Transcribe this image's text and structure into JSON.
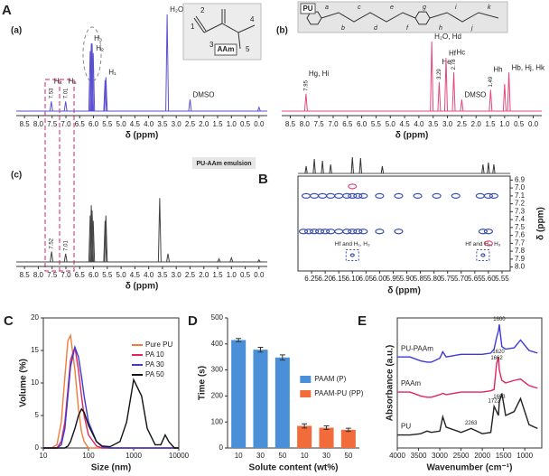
{
  "chart_data": [
    {
      "type": "spectrum",
      "panel": "A",
      "subtitle": "(a)",
      "xlabel": "δ (ppm)",
      "color": "#5a4fcf",
      "xlim": [
        8.8,
        -0.3
      ],
      "xticks": [
        8.5,
        {
          "value": 8,
          "label": "8.0"
        },
        7.5,
        {
          "value": 7,
          "label": "7.0"
        },
        6.5,
        {
          "value": 6,
          "label": "6.0"
        },
        5.5,
        {
          "value": 5,
          "label": "5.0"
        },
        4.5,
        {
          "value": 4,
          "label": "4.0"
        },
        3.5,
        {
          "value": 3,
          "label": "3.0"
        },
        2.5,
        {
          "value": 2,
          "label": "2.0"
        },
        1.5,
        {
          "value": 1,
          "label": "1.0"
        },
        0.5,
        {
          "value": 0,
          "label": "0.0"
        }
      ],
      "x": [
        7.53,
        7.01,
        6.12,
        6.08,
        6.05,
        6.01,
        5.58,
        5.55,
        3.33,
        2.5,
        0
      ],
      "values": [
        0.1,
        0.1,
        0.62,
        0.7,
        0.7,
        0.6,
        0.32,
        0.35,
        1.0,
        0.12,
        0.04
      ],
      "peak_labels": [
        "H₄",
        "H₅",
        null,
        "H₃",
        null,
        "H₂",
        null,
        "H₁",
        "H₂O",
        "DMSO",
        null
      ],
      "shift_labels": [
        "7.53",
        "7.01",
        null,
        null,
        null,
        null,
        null,
        null,
        null,
        null,
        null
      ],
      "structure": {
        "label": "AAm",
        "atom_labels": [
          "1",
          "2",
          "3",
          "4",
          "5"
        ]
      }
    },
    {
      "type": "spectrum",
      "subtitle": "(b)",
      "xlabel": "δ (ppm)",
      "color": "#e4487c",
      "xlim": [
        8.8,
        -0.3
      ],
      "xticks": [
        8.5,
        {
          "value": 8,
          "label": "8.0"
        },
        7.5,
        {
          "value": 7,
          "label": "7.0"
        },
        6.5,
        {
          "value": 6,
          "label": "6.0"
        },
        5.5,
        {
          "value": 5,
          "label": "5.0"
        },
        4.5,
        {
          "value": 4,
          "label": "4.0"
        },
        3.5,
        {
          "value": 3,
          "label": "3.0"
        },
        2.5,
        {
          "value": 2,
          "label": "2.0"
        },
        1.5,
        {
          "value": 1,
          "label": "1.0"
        },
        0.5,
        {
          "value": 0,
          "label": "0.0"
        }
      ],
      "x": [
        7.95,
        3.55,
        3.29,
        3.05,
        2.78,
        2.5,
        1.49,
        1.0,
        0.85
      ],
      "values": [
        0.18,
        0.72,
        0.3,
        0.55,
        0.4,
        0.12,
        0.22,
        0.28,
        0.4
      ],
      "peak_labels": [
        "Hg, Hi",
        "H₂O, Hd",
        "He",
        "Hf",
        "Hc",
        "DMSO",
        "Hh",
        null,
        "Hb, Hj, Hk"
      ],
      "shift_labels": [
        "7.95",
        null,
        "3.29",
        null,
        "2.78",
        null,
        "1.49",
        null,
        null
      ],
      "structure": {
        "label": "PU",
        "atom_labels": [
          "a",
          "b",
          "c",
          "d",
          "e",
          "f",
          "g",
          "h",
          "i",
          "j",
          "k"
        ]
      }
    },
    {
      "type": "spectrum",
      "subtitle": "(c)",
      "xlabel": "δ (ppm)",
      "color": "#444444",
      "annotation": "PU-AAm emulsion",
      "xlim": [
        8.8,
        -0.3
      ],
      "xticks": [
        8.5,
        {
          "value": 8,
          "label": "8.0"
        },
        7.5,
        {
          "value": 7,
          "label": "7.0"
        },
        6.5,
        {
          "value": 6,
          "label": "6.0"
        },
        5.5,
        {
          "value": 5,
          "label": "5.0"
        },
        4.5,
        {
          "value": 4,
          "label": "4.0"
        },
        3.5,
        {
          "value": 3,
          "label": "3.0"
        },
        2.5,
        {
          "value": 2,
          "label": "2.0"
        },
        1.5,
        {
          "value": 1,
          "label": "1.0"
        },
        0.5,
        {
          "value": 0,
          "label": "0.0"
        }
      ],
      "x": [
        7.52,
        7.01,
        6.12,
        6.08,
        6.05,
        6.01,
        5.58,
        5.55,
        3.6,
        3.3,
        1.45,
        1.0,
        0
      ],
      "values": [
        0.1,
        0.08,
        0.45,
        0.55,
        0.5,
        0.4,
        0.4,
        0.45,
        0.62,
        0.08,
        0.03,
        0.04,
        0.02
      ],
      "shift_labels": [
        "7.52",
        "7.01",
        null,
        null,
        null,
        null,
        null,
        null,
        null,
        null,
        null,
        null,
        null
      ]
    },
    {
      "type": "contour",
      "panel": "B",
      "xlabel": "δ (ppm)",
      "ylabel": "δ (ppm)",
      "xlim": [
        6.3,
        5.52
      ],
      "ylim": [
        6.85,
        8.05
      ],
      "xticks": [
        6.25,
        {
          "value": 6.2,
          "label": "6.20"
        },
        6.15,
        {
          "value": 6.1,
          "label": "6.10"
        },
        6.05,
        {
          "value": 6,
          "label": "6.00"
        },
        5.95,
        {
          "value": 5.9,
          "label": "5.90"
        },
        5.85,
        {
          "value": 5.8,
          "label": "5.80"
        },
        5.75,
        {
          "value": 5.7,
          "label": "5.70"
        },
        5.65,
        {
          "value": 5.6,
          "label": "5.60"
        },
        5.55
      ],
      "yticks": [
        6.9,
        {
          "value": 7,
          "label": "7.0"
        },
        7.1,
        7.2,
        7.3,
        7.4,
        7.5,
        7.6,
        7.7,
        7.8,
        7.9,
        {
          "value": 8,
          "label": "8.0"
        }
      ],
      "projection": {
        "x": [
          6.27,
          6.24,
          6.21,
          6.18,
          6.1,
          6.07,
          5.99,
          5.62,
          5.6,
          5.58
        ],
        "values": [
          0.4,
          0.8,
          0.7,
          0.5,
          0.9,
          0.85,
          0.4,
          0.5,
          0.6,
          0.5
        ]
      },
      "series": [
        {
          "color": "#3b4fb0",
          "x": [
            6.27,
            6.24,
            6.21,
            6.18,
            6.15,
            6.12,
            6.1,
            6.08,
            6.06,
            6.0,
            5.93,
            5.86,
            5.79,
            5.72,
            5.63,
            5.6,
            5.58,
            6.28,
            6.26,
            6.24,
            6.22,
            6.2,
            6.18,
            6.15,
            6.12,
            6.1,
            6.08,
            6.06,
            6.0,
            5.93,
            5.62,
            5.6
          ],
          "values": [
            7.1,
            7.1,
            7.1,
            7.1,
            7.1,
            7.1,
            7.1,
            7.1,
            7.1,
            7.1,
            7.1,
            7.1,
            7.1,
            7.1,
            7.1,
            7.1,
            7.1,
            7.55,
            7.55,
            7.55,
            7.55,
            7.55,
            7.55,
            7.55,
            7.55,
            7.55,
            7.55,
            7.55,
            7.55,
            7.55,
            7.55,
            7.55
          ]
        },
        {
          "color": "#e4487c",
          "x": [
            6.1,
            5.6
          ],
          "values": [
            6.98,
            7.7
          ]
        },
        {
          "color": "#3b4fb0",
          "highlight": true,
          "x": [
            6.1,
            5.62
          ],
          "values": [
            7.85,
            7.85
          ],
          "point_labels": [
            "Hf and H₁, H₃",
            "Hf and H₂, H₃"
          ]
        }
      ]
    },
    {
      "type": "line",
      "panel": "C",
      "xlabel": "Size (nm)",
      "ylabel": "Volume (%)",
      "log_x": true,
      "legend": "upper right",
      "xlim": [
        10,
        10000
      ],
      "xticks": [
        10,
        100,
        1000,
        10000
      ],
      "ylim": [
        0,
        20
      ],
      "yticks": [
        0,
        5,
        10,
        15,
        20
      ],
      "x": [
        10,
        15,
        20,
        25,
        30,
        35,
        40,
        50,
        60,
        70,
        80,
        100,
        150,
        200,
        300,
        500,
        700,
        1000,
        1500,
        2000,
        3000,
        4000,
        5000,
        6000,
        8000,
        10000
      ],
      "series": [
        {
          "name": "Pure PU",
          "color": "#f07c3c",
          "values": [
            0,
            0,
            0.5,
            4,
            11,
            16.5,
            17.3,
            12,
            6,
            2.5,
            1,
            0,
            0,
            0,
            0,
            0,
            0,
            0,
            0,
            0,
            0,
            0,
            0,
            0,
            0,
            0
          ]
        },
        {
          "name": "PA 10",
          "color": "#e0245e",
          "values": [
            0,
            0,
            0,
            1,
            4,
            9,
            13.5,
            15.5,
            12,
            8,
            5,
            2,
            0.3,
            0,
            0,
            0,
            0,
            0,
            0,
            0,
            0,
            0,
            0,
            0,
            0,
            0
          ]
        },
        {
          "name": "PA 30",
          "color": "#3a3ad6",
          "values": [
            0,
            0,
            0,
            0.5,
            3,
            8,
            12.5,
            15.5,
            14,
            11,
            8,
            4,
            1,
            0.2,
            0,
            0,
            0,
            0,
            0,
            0,
            0,
            0,
            0,
            0,
            0,
            0
          ]
        },
        {
          "name": "PA 50",
          "color": "#111111",
          "values": [
            0,
            0,
            0,
            0,
            0,
            0.3,
            1,
            3,
            5,
            6,
            5.5,
            3.5,
            1,
            0.3,
            0.2,
            1,
            4,
            10.5,
            8,
            3,
            0.5,
            0.5,
            2,
            1,
            0,
            0
          ]
        }
      ]
    },
    {
      "type": "bar",
      "panel": "D",
      "xlabel": "Solute content (wt%)",
      "ylabel": "Time (s)",
      "legend": "right",
      "categories": [
        "10",
        "30",
        "50",
        "10",
        "30",
        "50"
      ],
      "ylim": [
        0,
        500
      ],
      "yticks": [
        0,
        100,
        200,
        300,
        400,
        500
      ],
      "series": [
        {
          "name": "PAAM (P)",
          "color": "#4a90d9",
          "values": [
            415,
            378,
            348,
            null,
            null,
            null
          ],
          "errors": [
            6,
            9,
            10,
            null,
            null,
            null
          ]
        },
        {
          "name": "PAAM-PU (PP)",
          "color": "#f26b3a",
          "values": [
            null,
            null,
            null,
            85,
            78,
            70
          ],
          "errors": [
            null,
            null,
            null,
            8,
            7,
            6
          ]
        }
      ]
    },
    {
      "type": "line",
      "panel": "E",
      "xlabel": "Wavenumber (cm⁻¹)",
      "ylabel": "Absorbance (a.u.)",
      "legend": "inline",
      "xlim": [
        4000,
        600
      ],
      "xticks": [
        4000,
        3500,
        3000,
        2500,
        2000,
        1500,
        1000
      ],
      "ylim": [
        0,
        10
      ],
      "x": [
        4000,
        3700,
        3450,
        3300,
        3200,
        3000,
        2930,
        2850,
        2500,
        2263,
        2000,
        1800,
        1722,
        1662,
        1620,
        1600,
        1540,
        1450,
        1250,
        1100,
        900,
        700
      ],
      "series": [
        {
          "name": "PU-PAAm",
          "color": "#3a3ad6",
          "values": [
            7,
            7,
            6.7,
            6.6,
            6.6,
            6.9,
            7.4,
            7,
            7.2,
            7.2,
            7.2,
            7.3,
            7.6,
            8.5,
            9,
            9.5,
            7.8,
            7.6,
            7.7,
            8.3,
            7.5,
            7.3
          ],
          "point_labels": [
            null,
            null,
            null,
            null,
            null,
            null,
            null,
            null,
            null,
            null,
            null,
            null,
            null,
            null,
            null,
            "1600",
            null,
            null,
            null,
            null,
            null,
            null
          ]
        },
        {
          "name": "PAAm",
          "color": "#e0245e",
          "values": [
            4.3,
            4.3,
            4,
            3.9,
            3.9,
            4.1,
            4.2,
            4.1,
            4.3,
            4.3,
            4.3,
            4.4,
            4.5,
            6.5,
            7,
            6,
            5.2,
            5,
            5.2,
            5.3,
            4.8,
            4.6
          ],
          "point_labels": [
            null,
            null,
            null,
            null,
            null,
            null,
            null,
            null,
            null,
            null,
            null,
            null,
            null,
            "1662",
            "1620",
            null,
            null,
            null,
            null,
            null,
            null,
            null
          ]
        },
        {
          "name": "PU",
          "color": "#222222",
          "values": [
            1,
            1,
            1.1,
            1.3,
            1.2,
            1.3,
            2.4,
            1.6,
            1.2,
            1.5,
            1.1,
            1.2,
            3.2,
            2.8,
            2.5,
            3.5,
            4.2,
            2.5,
            2.8,
            3.8,
            1.8,
            1.5
          ],
          "point_labels": [
            null,
            null,
            null,
            null,
            null,
            null,
            null,
            null,
            null,
            "2263",
            null,
            null,
            "1722",
            null,
            null,
            "1603",
            null,
            null,
            null,
            null,
            null,
            null
          ]
        }
      ]
    }
  ]
}
